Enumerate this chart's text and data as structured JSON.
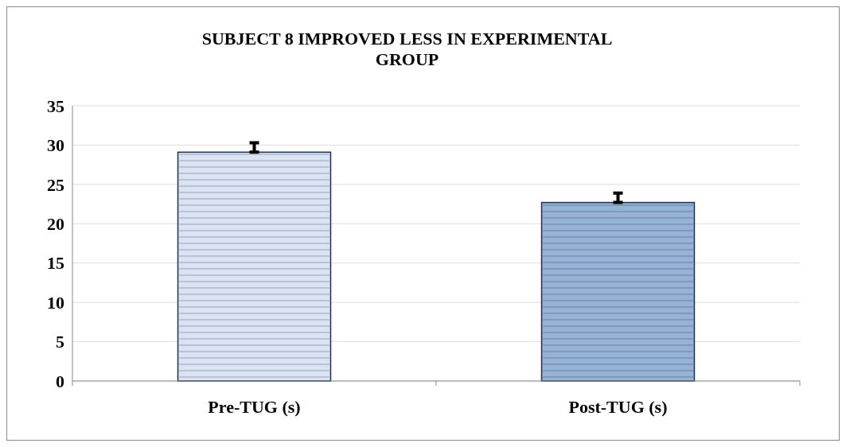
{
  "chart_data": {
    "type": "bar",
    "title": "SUBJECT 8 IMPROVED LESS IN EXPERIMENTAL GROUP",
    "categories": [
      "Pre-TUG (s)",
      "Post-TUG (s)"
    ],
    "values": [
      29.1,
      22.7
    ],
    "colors": [
      "#dae3f3",
      "#95b3d7"
    ],
    "errors": [
      [
        29.1,
        30.3
      ],
      [
        22.7,
        23.9
      ]
    ],
    "ylim": [
      0,
      35
    ],
    "yticks": [
      0,
      5,
      10,
      15,
      20,
      25,
      30,
      35
    ],
    "grid": "y"
  }
}
